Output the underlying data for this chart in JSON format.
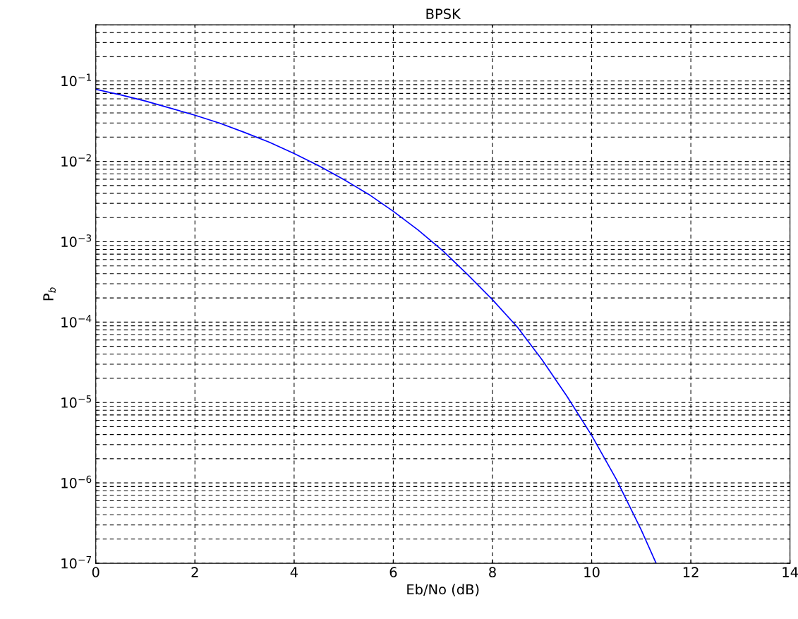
{
  "chart_data": {
    "type": "line",
    "title": "BPSK",
    "xlabel": "Eb/No (dB)",
    "ylabel": "P$_{b}$",
    "log": "y",
    "grid": true,
    "line_style": "solid",
    "marker": "none",
    "xlim": [
      0,
      14
    ],
    "xticks": [
      0,
      2,
      4,
      6,
      8,
      10,
      12,
      14
    ],
    "ylim": [
      1e-07,
      0.5
    ],
    "yticks": [
      {
        "value": 1e-07,
        "label": "10$^{−7}$"
      },
      {
        "value": 1e-06,
        "label": "10$^{−6}$"
      },
      {
        "value": 1e-05,
        "label": "10$^{−5}$"
      },
      {
        "value": 0.0001,
        "label": "10$^{−4}$"
      },
      {
        "value": 0.001,
        "label": "10$^{−3}$"
      },
      {
        "value": 0.01,
        "label": "10$^{−2}$"
      },
      {
        "value": 0.1,
        "label": "10$^{−1}$"
      }
    ],
    "series": [
      {
        "color": "#0000ff",
        "x": [
          0,
          0.5,
          1,
          1.5,
          2,
          2.5,
          3,
          3.5,
          4,
          4.5,
          5,
          5.5,
          6,
          6.5,
          7,
          7.5,
          8,
          8.5,
          9,
          9.5,
          10,
          10.5,
          11,
          11.3
        ],
        "values": [
          0.0786,
          0.0671,
          0.0563,
          0.046,
          0.0375,
          0.0298,
          0.0229,
          0.0173,
          0.0125,
          0.0088,
          0.00595,
          0.0039,
          0.00239,
          0.0014,
          0.00077,
          0.00039,
          0.00019,
          8.7e-05,
          3.4e-05,
          1.2e-05,
          3.9e-06,
          1.1e-06,
          2.6e-07,
          1e-07
        ]
      }
    ]
  }
}
